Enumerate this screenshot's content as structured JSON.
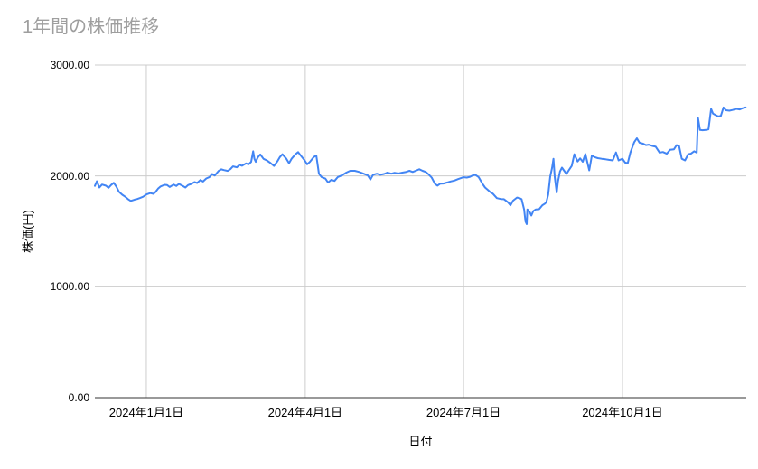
{
  "chart_data": {
    "type": "line",
    "title": "1年間の株価推移",
    "xlabel": "日付",
    "ylabel": "株価(円)",
    "ylim": [
      0,
      3000
    ],
    "grid": true,
    "legend": "none",
    "colors": {
      "series": "#4285f4",
      "gridline": "#cccccc",
      "baseline": "#333333",
      "title": "#9e9e9e",
      "tick_label": "#000000",
      "background": "#ffffff"
    },
    "yticks": [
      {
        "value": 0,
        "label": "0.00"
      },
      {
        "value": 1000,
        "label": "1000.00"
      },
      {
        "value": 2000,
        "label": "2000.00"
      },
      {
        "value": 3000,
        "label": "3000.00"
      }
    ],
    "xticks": [
      {
        "pos": 0.079,
        "label": "2024年1月1日"
      },
      {
        "pos": 0.323,
        "label": "2024年4月1日"
      },
      {
        "pos": 0.566,
        "label": "2024年7月1日"
      },
      {
        "pos": 0.81,
        "label": "2024年10月1日"
      }
    ],
    "series": [
      {
        "points": [
          [
            0.0,
            1910
          ],
          [
            0.003,
            1952
          ],
          [
            0.007,
            1895
          ],
          [
            0.011,
            1922
          ],
          [
            0.017,
            1912
          ],
          [
            0.021,
            1893
          ],
          [
            0.025,
            1918
          ],
          [
            0.029,
            1938
          ],
          [
            0.033,
            1903
          ],
          [
            0.037,
            1856
          ],
          [
            0.042,
            1830
          ],
          [
            0.046,
            1815
          ],
          [
            0.051,
            1790
          ],
          [
            0.055,
            1775
          ],
          [
            0.061,
            1786
          ],
          [
            0.065,
            1792
          ],
          [
            0.069,
            1800
          ],
          [
            0.074,
            1812
          ],
          [
            0.079,
            1833
          ],
          [
            0.085,
            1845
          ],
          [
            0.09,
            1838
          ],
          [
            0.093,
            1855
          ],
          [
            0.097,
            1885
          ],
          [
            0.101,
            1905
          ],
          [
            0.107,
            1920
          ],
          [
            0.111,
            1917
          ],
          [
            0.115,
            1900
          ],
          [
            0.121,
            1922
          ],
          [
            0.125,
            1909
          ],
          [
            0.129,
            1928
          ],
          [
            0.135,
            1909
          ],
          [
            0.139,
            1895
          ],
          [
            0.143,
            1917
          ],
          [
            0.148,
            1928
          ],
          [
            0.153,
            1944
          ],
          [
            0.157,
            1936
          ],
          [
            0.162,
            1963
          ],
          [
            0.166,
            1949
          ],
          [
            0.171,
            1977
          ],
          [
            0.176,
            1990
          ],
          [
            0.18,
            2018
          ],
          [
            0.184,
            2004
          ],
          [
            0.19,
            2045
          ],
          [
            0.194,
            2059
          ],
          [
            0.198,
            2053
          ],
          [
            0.204,
            2045
          ],
          [
            0.208,
            2061
          ],
          [
            0.212,
            2086
          ],
          [
            0.218,
            2078
          ],
          [
            0.222,
            2100
          ],
          [
            0.226,
            2092
          ],
          [
            0.232,
            2113
          ],
          [
            0.236,
            2105
          ],
          [
            0.24,
            2127
          ],
          [
            0.243,
            2222
          ],
          [
            0.245,
            2154
          ],
          [
            0.247,
            2127
          ],
          [
            0.25,
            2167
          ],
          [
            0.254,
            2194
          ],
          [
            0.259,
            2154
          ],
          [
            0.264,
            2140
          ],
          [
            0.27,
            2115
          ],
          [
            0.275,
            2090
          ],
          [
            0.28,
            2130
          ],
          [
            0.284,
            2170
          ],
          [
            0.288,
            2195
          ],
          [
            0.294,
            2155
          ],
          [
            0.298,
            2115
          ],
          [
            0.302,
            2155
          ],
          [
            0.308,
            2195
          ],
          [
            0.312,
            2215
          ],
          [
            0.316,
            2185
          ],
          [
            0.322,
            2140
          ],
          [
            0.326,
            2105
          ],
          [
            0.33,
            2125
          ],
          [
            0.336,
            2170
          ],
          [
            0.34,
            2185
          ],
          [
            0.344,
            2020
          ],
          [
            0.348,
            1990
          ],
          [
            0.354,
            1975
          ],
          [
            0.358,
            1940
          ],
          [
            0.363,
            1965
          ],
          [
            0.368,
            1955
          ],
          [
            0.373,
            1990
          ],
          [
            0.379,
            2005
          ],
          [
            0.386,
            2030
          ],
          [
            0.392,
            2046
          ],
          [
            0.399,
            2046
          ],
          [
            0.406,
            2036
          ],
          [
            0.413,
            2019
          ],
          [
            0.419,
            2005
          ],
          [
            0.423,
            1967
          ],
          [
            0.427,
            2010
          ],
          [
            0.433,
            2020
          ],
          [
            0.438,
            2010
          ],
          [
            0.444,
            2018
          ],
          [
            0.449,
            2030
          ],
          [
            0.455,
            2020
          ],
          [
            0.46,
            2028
          ],
          [
            0.466,
            2022
          ],
          [
            0.472,
            2030
          ],
          [
            0.477,
            2035
          ],
          [
            0.483,
            2046
          ],
          [
            0.488,
            2036
          ],
          [
            0.494,
            2050
          ],
          [
            0.498,
            2060
          ],
          [
            0.503,
            2046
          ],
          [
            0.508,
            2036
          ],
          [
            0.513,
            2010
          ],
          [
            0.517,
            1985
          ],
          [
            0.522,
            1930
          ],
          [
            0.526,
            1912
          ],
          [
            0.53,
            1930
          ],
          [
            0.535,
            1931
          ],
          [
            0.541,
            1941
          ],
          [
            0.546,
            1950
          ],
          [
            0.552,
            1958
          ],
          [
            0.558,
            1972
          ],
          [
            0.562,
            1980
          ],
          [
            0.566,
            1988
          ],
          [
            0.571,
            1985
          ],
          [
            0.576,
            1992
          ],
          [
            0.58,
            2005
          ],
          [
            0.584,
            2010
          ],
          [
            0.589,
            1990
          ],
          [
            0.595,
            1930
          ],
          [
            0.599,
            1895
          ],
          [
            0.603,
            1875
          ],
          [
            0.607,
            1855
          ],
          [
            0.611,
            1840
          ],
          [
            0.617,
            1800
          ],
          [
            0.623,
            1792
          ],
          [
            0.628,
            1790
          ],
          [
            0.634,
            1763
          ],
          [
            0.638,
            1736
          ],
          [
            0.642,
            1777
          ],
          [
            0.648,
            1805
          ],
          [
            0.652,
            1800
          ],
          [
            0.655,
            1790
          ],
          [
            0.659,
            1698
          ],
          [
            0.661,
            1590
          ],
          [
            0.663,
            1565
          ],
          [
            0.664,
            1698
          ],
          [
            0.668,
            1670
          ],
          [
            0.67,
            1643
          ],
          [
            0.673,
            1683
          ],
          [
            0.677,
            1698
          ],
          [
            0.682,
            1700
          ],
          [
            0.687,
            1736
          ],
          [
            0.691,
            1750
          ],
          [
            0.693,
            1763
          ],
          [
            0.696,
            1833
          ],
          [
            0.699,
            1995
          ],
          [
            0.702,
            2075
          ],
          [
            0.704,
            2155
          ],
          [
            0.706,
            1990
          ],
          [
            0.709,
            1850
          ],
          [
            0.711,
            1950
          ],
          [
            0.714,
            2040
          ],
          [
            0.717,
            2075
          ],
          [
            0.72,
            2050
          ],
          [
            0.724,
            2018
          ],
          [
            0.728,
            2055
          ],
          [
            0.732,
            2090
          ],
          [
            0.736,
            2195
          ],
          [
            0.741,
            2130
          ],
          [
            0.745,
            2158
          ],
          [
            0.749,
            2128
          ],
          [
            0.753,
            2198
          ],
          [
            0.759,
            2050
          ],
          [
            0.763,
            2185
          ],
          [
            0.767,
            2170
          ],
          [
            0.772,
            2160
          ],
          [
            0.778,
            2155
          ],
          [
            0.784,
            2150
          ],
          [
            0.789,
            2145
          ],
          [
            0.795,
            2140
          ],
          [
            0.8,
            2212
          ],
          [
            0.804,
            2140
          ],
          [
            0.81,
            2155
          ],
          [
            0.814,
            2120
          ],
          [
            0.818,
            2115
          ],
          [
            0.822,
            2210
          ],
          [
            0.828,
            2305
          ],
          [
            0.832,
            2340
          ],
          [
            0.836,
            2300
          ],
          [
            0.842,
            2290
          ],
          [
            0.846,
            2278
          ],
          [
            0.85,
            2282
          ],
          [
            0.856,
            2270
          ],
          [
            0.861,
            2263
          ],
          [
            0.867,
            2210
          ],
          [
            0.872,
            2216
          ],
          [
            0.878,
            2200
          ],
          [
            0.883,
            2235
          ],
          [
            0.889,
            2240
          ],
          [
            0.893,
            2278
          ],
          [
            0.897,
            2268
          ],
          [
            0.901,
            2155
          ],
          [
            0.906,
            2140
          ],
          [
            0.911,
            2196
          ],
          [
            0.915,
            2200
          ],
          [
            0.92,
            2222
          ],
          [
            0.924,
            2210
          ],
          [
            0.926,
            2522
          ],
          [
            0.929,
            2415
          ],
          [
            0.933,
            2412
          ],
          [
            0.938,
            2415
          ],
          [
            0.942,
            2420
          ],
          [
            0.946,
            2605
          ],
          [
            0.949,
            2562
          ],
          [
            0.953,
            2548
          ],
          [
            0.957,
            2536
          ],
          [
            0.961,
            2542
          ],
          [
            0.965,
            2618
          ],
          [
            0.969,
            2592
          ],
          [
            0.974,
            2588
          ],
          [
            0.979,
            2595
          ],
          [
            0.985,
            2605
          ],
          [
            0.99,
            2600
          ],
          [
            0.994,
            2610
          ],
          [
            0.999,
            2618
          ]
        ]
      }
    ]
  }
}
